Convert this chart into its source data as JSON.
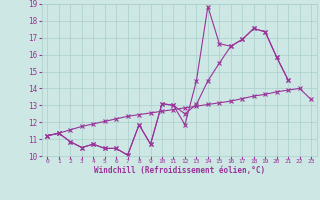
{
  "xlabel": "Windchill (Refroidissement éolien,°C)",
  "xlim": [
    -0.5,
    23.5
  ],
  "ylim": [
    10,
    19
  ],
  "xticks": [
    0,
    1,
    2,
    3,
    4,
    5,
    6,
    7,
    8,
    9,
    10,
    11,
    12,
    13,
    14,
    15,
    16,
    17,
    18,
    19,
    20,
    21,
    22,
    23
  ],
  "yticks": [
    10,
    11,
    12,
    13,
    14,
    15,
    16,
    17,
    18,
    19
  ],
  "bg_color": "#cde8e4",
  "grid_color": "#aacfcc",
  "line_color": "#993399",
  "line1_x": [
    0,
    1,
    2,
    3,
    4,
    5,
    6,
    7,
    8,
    9,
    10,
    11,
    12,
    13,
    14,
    15,
    16,
    17,
    18,
    19,
    20,
    21
  ],
  "line1_y": [
    11.2,
    11.35,
    10.85,
    10.5,
    10.7,
    10.45,
    10.45,
    10.05,
    11.85,
    10.7,
    13.1,
    13.0,
    11.85,
    14.45,
    18.85,
    16.65,
    16.5,
    16.9,
    17.55,
    17.35,
    15.85,
    14.5
  ],
  "line2_x": [
    0,
    1,
    2,
    3,
    4,
    5,
    6,
    7,
    8,
    9,
    10,
    11,
    12,
    13,
    14,
    15,
    16,
    17,
    18,
    19,
    20,
    21
  ],
  "line2_y": [
    11.2,
    11.35,
    10.85,
    10.5,
    10.7,
    10.45,
    10.45,
    10.05,
    11.85,
    10.7,
    13.1,
    13.0,
    12.5,
    13.05,
    14.45,
    15.5,
    16.5,
    16.9,
    17.55,
    17.35,
    15.85,
    14.5
  ],
  "line3_x": [
    0,
    1,
    2,
    3,
    4,
    5,
    6,
    7,
    8,
    9,
    10,
    11,
    12,
    13,
    14,
    15,
    16,
    17,
    18,
    19,
    20,
    21,
    22,
    23
  ],
  "line3_y": [
    11.2,
    11.35,
    11.55,
    11.75,
    11.9,
    12.05,
    12.2,
    12.35,
    12.45,
    12.55,
    12.65,
    12.75,
    12.85,
    12.95,
    13.05,
    13.15,
    13.25,
    13.4,
    13.55,
    13.65,
    13.8,
    13.9,
    14.0,
    13.35
  ]
}
